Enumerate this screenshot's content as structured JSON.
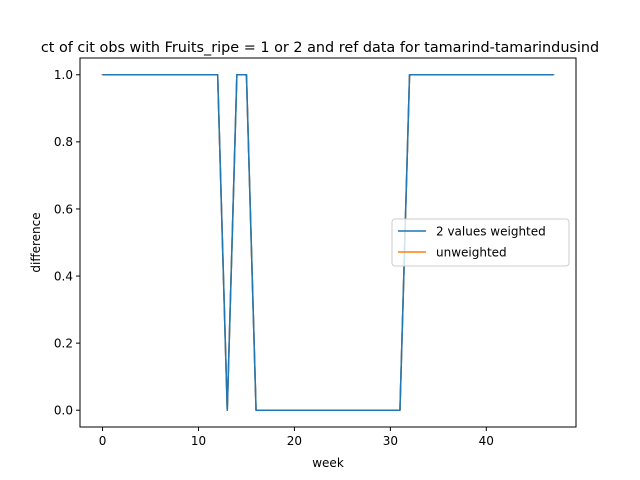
{
  "chart_data": {
    "type": "line",
    "title": "ct of cit obs with Fruits_ripe = 1 or 2 and ref data for tamarind-tamarindusind",
    "xlabel": "week",
    "ylabel": "difference",
    "xlim": [
      -2.35,
      49.35
    ],
    "ylim": [
      -0.05,
      1.05
    ],
    "x_ticks": [
      0,
      10,
      20,
      30,
      40
    ],
    "y_ticks": [
      0.0,
      0.2,
      0.4,
      0.6,
      0.8,
      1.0
    ],
    "x_tick_labels": [
      "0",
      "10",
      "20",
      "30",
      "40"
    ],
    "y_tick_labels": [
      "0.0",
      "0.2",
      "0.4",
      "0.6",
      "0.8",
      "1.0"
    ],
    "grid": false,
    "legend_position": "center-right",
    "series": [
      {
        "name": "2 values weighted",
        "color": "#1f77b4",
        "x": [
          0,
          1,
          2,
          3,
          4,
          5,
          6,
          7,
          8,
          9,
          10,
          11,
          12,
          13,
          14,
          15,
          16,
          17,
          18,
          19,
          20,
          21,
          22,
          23,
          24,
          25,
          26,
          27,
          28,
          29,
          30,
          31,
          32,
          33,
          34,
          35,
          36,
          37,
          38,
          39,
          40,
          41,
          42,
          43,
          44,
          45,
          46,
          47
        ],
        "y": [
          1,
          1,
          1,
          1,
          1,
          1,
          1,
          1,
          1,
          1,
          1,
          1,
          1,
          0,
          1,
          1,
          0,
          0,
          0,
          0,
          0,
          0,
          0,
          0,
          0,
          0,
          0,
          0,
          0,
          0,
          0,
          0,
          1,
          1,
          1,
          1,
          1,
          1,
          1,
          1,
          1,
          1,
          1,
          1,
          1,
          1,
          1,
          1
        ]
      },
      {
        "name": "unweighted",
        "color": "#ff7f0e",
        "x": [
          0,
          1,
          2,
          3,
          4,
          5,
          6,
          7,
          8,
          9,
          10,
          11,
          12,
          13,
          14,
          15,
          16,
          17,
          18,
          19,
          20,
          21,
          22,
          23,
          24,
          25,
          26,
          27,
          28,
          29,
          30,
          31,
          32,
          33,
          34,
          35,
          36,
          37,
          38,
          39,
          40,
          41,
          42,
          43,
          44,
          45,
          46,
          47
        ],
        "y": [
          1,
          1,
          1,
          1,
          1,
          1,
          1,
          1,
          1,
          1,
          1,
          1,
          1,
          0,
          1,
          1,
          0,
          0,
          0,
          0,
          0,
          0,
          0,
          0,
          0,
          0,
          0,
          0,
          0,
          0,
          0,
          0,
          1,
          1,
          1,
          1,
          1,
          1,
          1,
          1,
          1,
          1,
          1,
          1,
          1,
          1,
          1,
          1
        ]
      }
    ]
  }
}
